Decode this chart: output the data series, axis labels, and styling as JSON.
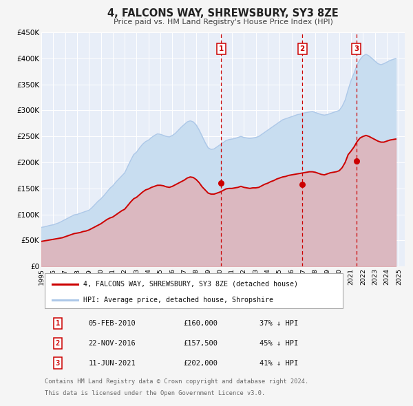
{
  "title": "4, FALCONS WAY, SHREWSBURY, SY3 8ZE",
  "subtitle": "Price paid vs. HM Land Registry's House Price Index (HPI)",
  "ylim": [
    0,
    450000
  ],
  "yticks": [
    0,
    50000,
    100000,
    150000,
    200000,
    250000,
    300000,
    350000,
    400000,
    450000
  ],
  "ytick_labels": [
    "£0",
    "£50K",
    "£100K",
    "£150K",
    "£200K",
    "£250K",
    "£300K",
    "£350K",
    "£400K",
    "£450K"
  ],
  "xlim_start": 1995.0,
  "xlim_end": 2025.5,
  "hpi_color": "#adc8e8",
  "hpi_fill_color": "#c8ddf0",
  "price_color": "#cc0000",
  "price_fill_color": "#e8a0a0",
  "plot_bg": "#e8eef8",
  "grid_color": "#ffffff",
  "vline_color": "#cc0000",
  "legend_red_label": "4, FALCONS WAY, SHREWSBURY, SY3 8ZE (detached house)",
  "legend_blue_label": "HPI: Average price, detached house, Shropshire",
  "transactions": [
    {
      "num": "1",
      "date": "05-FEB-2010",
      "price": "£160,000",
      "hpi": "37% ↓ HPI",
      "year": 2010.1,
      "value": 160000
    },
    {
      "num": "2",
      "date": "22-NOV-2016",
      "price": "£157,500",
      "hpi": "45% ↓ HPI",
      "year": 2016.9,
      "value": 157500
    },
    {
      "num": "3",
      "date": "11-JUN-2021",
      "price": "£202,000",
      "hpi": "41% ↓ HPI",
      "year": 2021.45,
      "value": 202000
    }
  ],
  "footer_line1": "Contains HM Land Registry data © Crown copyright and database right 2024.",
  "footer_line2": "This data is licensed under the Open Government Licence v3.0.",
  "hpi_years": [
    1995.0,
    1995.25,
    1995.5,
    1995.75,
    1996.0,
    1996.25,
    1996.5,
    1996.75,
    1997.0,
    1997.25,
    1997.5,
    1997.75,
    1998.0,
    1998.25,
    1998.5,
    1998.75,
    1999.0,
    1999.25,
    1999.5,
    1999.75,
    2000.0,
    2000.25,
    2000.5,
    2000.75,
    2001.0,
    2001.25,
    2001.5,
    2001.75,
    2002.0,
    2002.25,
    2002.5,
    2002.75,
    2003.0,
    2003.25,
    2003.5,
    2003.75,
    2004.0,
    2004.25,
    2004.5,
    2004.75,
    2005.0,
    2005.25,
    2005.5,
    2005.75,
    2006.0,
    2006.25,
    2006.5,
    2006.75,
    2007.0,
    2007.25,
    2007.5,
    2007.75,
    2008.0,
    2008.25,
    2008.5,
    2008.75,
    2009.0,
    2009.25,
    2009.5,
    2009.75,
    2010.0,
    2010.25,
    2010.5,
    2010.75,
    2011.0,
    2011.25,
    2011.5,
    2011.75,
    2012.0,
    2012.25,
    2012.5,
    2012.75,
    2013.0,
    2013.25,
    2013.5,
    2013.75,
    2014.0,
    2014.25,
    2014.5,
    2014.75,
    2015.0,
    2015.25,
    2015.5,
    2015.75,
    2016.0,
    2016.25,
    2016.5,
    2016.75,
    2017.0,
    2017.25,
    2017.5,
    2017.75,
    2018.0,
    2018.25,
    2018.5,
    2018.75,
    2019.0,
    2019.25,
    2019.5,
    2019.75,
    2020.0,
    2020.25,
    2020.5,
    2020.75,
    2021.0,
    2021.25,
    2021.5,
    2021.75,
    2022.0,
    2022.25,
    2022.5,
    2022.75,
    2023.0,
    2023.25,
    2023.5,
    2023.75,
    2024.0,
    2024.25,
    2024.5,
    2024.75
  ],
  "hpi_values": [
    75000,
    76000,
    77500,
    79000,
    80000,
    82000,
    84000,
    87000,
    90000,
    93000,
    96000,
    99000,
    100000,
    102000,
    104000,
    106000,
    108000,
    113000,
    119000,
    125000,
    130000,
    136000,
    143000,
    150000,
    155000,
    162000,
    168000,
    174000,
    180000,
    192000,
    204000,
    215000,
    220000,
    228000,
    235000,
    240000,
    243000,
    248000,
    252000,
    255000,
    254000,
    252000,
    250000,
    249000,
    252000,
    256000,
    262000,
    268000,
    273000,
    278000,
    280000,
    278000,
    272000,
    262000,
    250000,
    238000,
    228000,
    225000,
    226000,
    230000,
    234000,
    238000,
    242000,
    244000,
    245000,
    246000,
    248000,
    250000,
    248000,
    247000,
    246000,
    247000,
    248000,
    250000,
    254000,
    258000,
    262000,
    266000,
    270000,
    274000,
    278000,
    282000,
    284000,
    286000,
    288000,
    290000,
    292000,
    293000,
    295000,
    296000,
    297000,
    298000,
    296000,
    294000,
    292000,
    291000,
    292000,
    294000,
    296000,
    298000,
    300000,
    308000,
    320000,
    340000,
    358000,
    372000,
    388000,
    398000,
    405000,
    408000,
    405000,
    400000,
    395000,
    390000,
    388000,
    390000,
    393000,
    396000,
    398000,
    400000
  ],
  "price_years": [
    1995.0,
    1995.25,
    1995.5,
    1995.75,
    1996.0,
    1996.25,
    1996.5,
    1996.75,
    1997.0,
    1997.25,
    1997.5,
    1997.75,
    1998.0,
    1998.25,
    1998.5,
    1998.75,
    1999.0,
    1999.25,
    1999.5,
    1999.75,
    2000.0,
    2000.25,
    2000.5,
    2000.75,
    2001.0,
    2001.25,
    2001.5,
    2001.75,
    2002.0,
    2002.25,
    2002.5,
    2002.75,
    2003.0,
    2003.25,
    2003.5,
    2003.75,
    2004.0,
    2004.25,
    2004.5,
    2004.75,
    2005.0,
    2005.25,
    2005.5,
    2005.75,
    2006.0,
    2006.25,
    2006.5,
    2006.75,
    2007.0,
    2007.25,
    2007.5,
    2007.75,
    2008.0,
    2008.25,
    2008.5,
    2008.75,
    2009.0,
    2009.25,
    2009.5,
    2009.75,
    2010.0,
    2010.25,
    2010.5,
    2010.75,
    2011.0,
    2011.25,
    2011.5,
    2011.75,
    2012.0,
    2012.25,
    2012.5,
    2012.75,
    2013.0,
    2013.25,
    2013.5,
    2013.75,
    2014.0,
    2014.25,
    2014.5,
    2014.75,
    2015.0,
    2015.25,
    2015.5,
    2015.75,
    2016.0,
    2016.25,
    2016.5,
    2016.75,
    2017.0,
    2017.25,
    2017.5,
    2017.75,
    2018.0,
    2018.25,
    2018.5,
    2018.75,
    2019.0,
    2019.25,
    2019.5,
    2019.75,
    2020.0,
    2020.25,
    2020.5,
    2020.75,
    2021.0,
    2021.25,
    2021.5,
    2021.75,
    2022.0,
    2022.25,
    2022.5,
    2022.75,
    2023.0,
    2023.25,
    2023.5,
    2023.75,
    2024.0,
    2024.25,
    2024.5,
    2024.75
  ],
  "price_values": [
    48000,
    49000,
    50000,
    51000,
    52000,
    53000,
    54000,
    55000,
    57000,
    59000,
    61000,
    63000,
    64000,
    65000,
    67000,
    68000,
    70000,
    73000,
    76000,
    79000,
    82000,
    86000,
    90000,
    93000,
    95000,
    99000,
    103000,
    107000,
    110000,
    117000,
    124000,
    130000,
    133000,
    138000,
    143000,
    147000,
    149000,
    152000,
    154000,
    156000,
    156000,
    155000,
    153000,
    152000,
    154000,
    157000,
    160000,
    163000,
    166000,
    170000,
    172000,
    171000,
    167000,
    161000,
    153000,
    147000,
    141000,
    139000,
    139000,
    141000,
    143000,
    146000,
    149000,
    150000,
    150000,
    151000,
    152000,
    154000,
    152000,
    151000,
    150000,
    151000,
    151000,
    152000,
    155000,
    158000,
    160000,
    163000,
    165000,
    168000,
    170000,
    172000,
    173000,
    175000,
    176000,
    177000,
    178000,
    179000,
    180000,
    181000,
    182000,
    182000,
    181000,
    179000,
    177000,
    176000,
    178000,
    180000,
    181000,
    182000,
    184000,
    190000,
    200000,
    215000,
    222000,
    230000,
    240000,
    247000,
    250000,
    252000,
    250000,
    247000,
    244000,
    241000,
    239000,
    239000,
    241000,
    243000,
    244000,
    245000
  ]
}
